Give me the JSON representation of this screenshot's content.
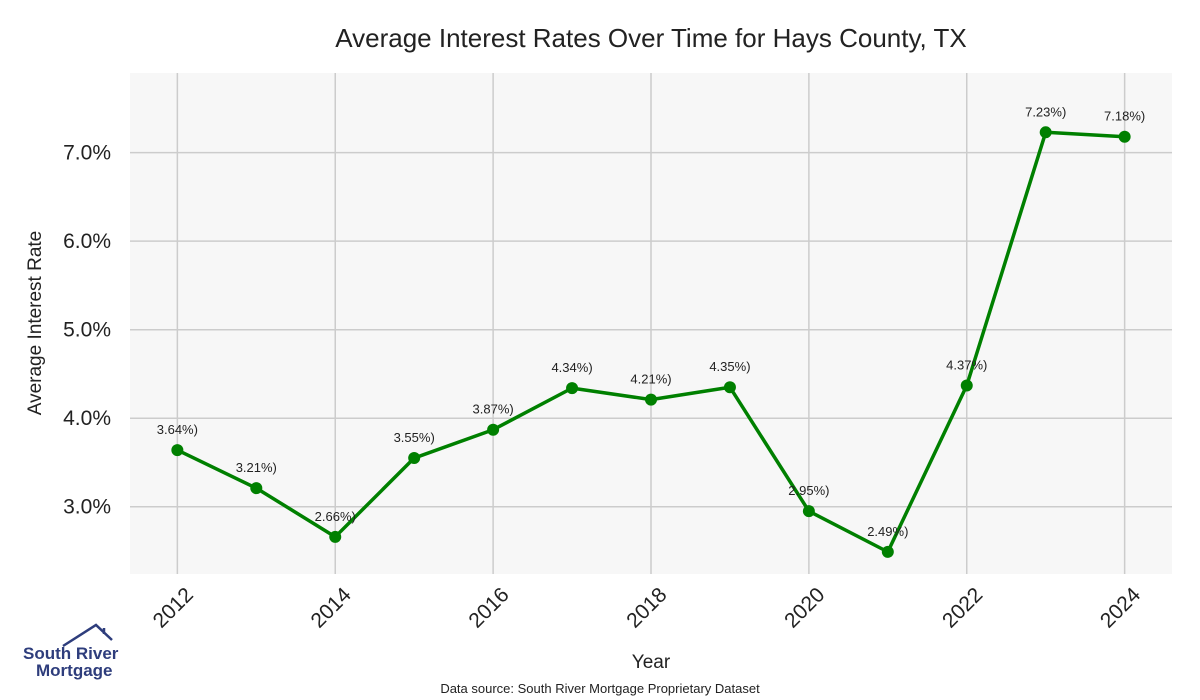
{
  "chart_data": {
    "type": "line",
    "title": "Average Interest Rates Over Time for Hays County, TX",
    "xlabel": "Year",
    "ylabel": "Average Interest Rate",
    "x": [
      2012,
      2013,
      2014,
      2015,
      2016,
      2017,
      2018,
      2019,
      2020,
      2021,
      2022,
      2023,
      2024
    ],
    "series": [
      {
        "values": [
          3.64,
          3.21,
          2.66,
          3.55,
          3.87,
          4.34,
          4.21,
          4.35,
          2.95,
          2.49,
          4.37,
          7.23,
          7.18
        ],
        "color": "#008000"
      }
    ],
    "data_labels": [
      "3.64%)",
      "3.21%)",
      "2.66%)",
      "3.55%)",
      "3.87%)",
      "4.34%)",
      "4.21%)",
      "4.35%)",
      "2.95%)",
      "2.49%)",
      "4.37%)",
      "7.23%)",
      "7.18%)"
    ],
    "x_ticks": [
      "2012",
      "2014",
      "2016",
      "2018",
      "2020",
      "2022",
      "2024"
    ],
    "y_ticks": [
      "3.0%",
      "4.0%",
      "5.0%",
      "6.0%",
      "7.0%"
    ],
    "y_tick_values": [
      3,
      4,
      5,
      6,
      7
    ],
    "xlim": [
      2011.4,
      2024.6
    ],
    "ylim": [
      2.24,
      7.9
    ],
    "grid": true,
    "background": "#f7f7f7"
  },
  "source_note": "Data source: South River Mortgage Proprietary Dataset",
  "logo": {
    "line1": "South River",
    "line2": "Mortgage",
    "icon": "house-roof-icon"
  }
}
